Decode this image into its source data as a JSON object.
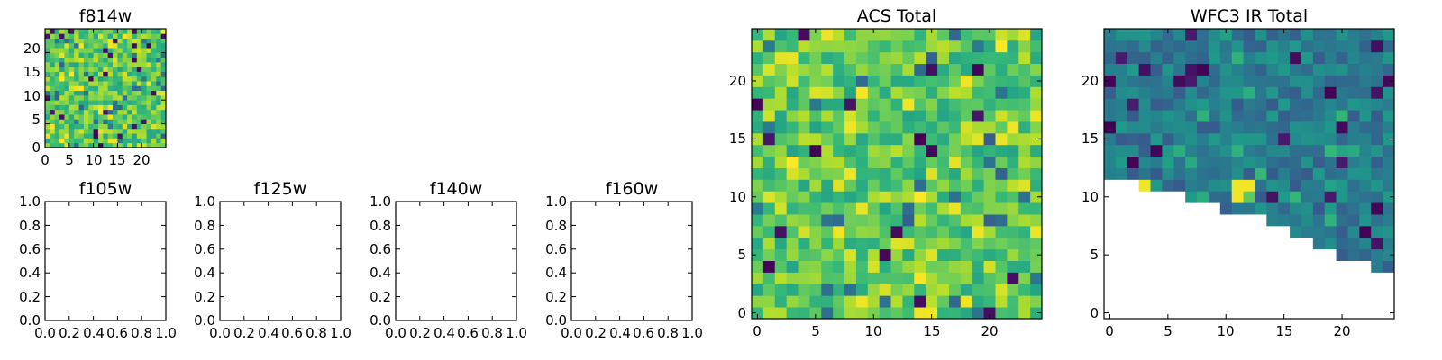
{
  "chart_data": [
    {
      "id": "f814w",
      "type": "heatmap",
      "title": "f814w",
      "xlim": [
        0,
        25
      ],
      "ylim": [
        0,
        25
      ],
      "xticks": [
        0,
        5,
        10,
        15,
        20
      ],
      "yticks": [
        0,
        5,
        10,
        15,
        20
      ],
      "tick_labels_x": [
        "0",
        "5",
        "10",
        "15",
        "20"
      ],
      "tick_labels_y": [
        "0",
        "5",
        "10",
        "15",
        "20"
      ],
      "grid_size": 25,
      "colormap": "viridis",
      "value_range": [
        0,
        1
      ],
      "pattern": "acs"
    },
    {
      "id": "f105w",
      "type": "empty",
      "title": "f105w",
      "xlim": [
        0,
        1
      ],
      "ylim": [
        0,
        1
      ],
      "xticks": [
        0,
        0.2,
        0.4,
        0.6,
        0.8,
        1.0
      ],
      "yticks": [
        0,
        0.2,
        0.4,
        0.6,
        0.8,
        1.0
      ],
      "tick_labels_x": [
        "0.0",
        "0.2",
        "0.4",
        "0.6",
        "0.8",
        "1.0"
      ],
      "tick_labels_y": [
        "0.0",
        "0.2",
        "0.4",
        "0.6",
        "0.8",
        "1.0"
      ]
    },
    {
      "id": "f125w",
      "type": "empty",
      "title": "f125w",
      "xlim": [
        0,
        1
      ],
      "ylim": [
        0,
        1
      ],
      "xticks": [
        0,
        0.2,
        0.4,
        0.6,
        0.8,
        1.0
      ],
      "yticks": [
        0,
        0.2,
        0.4,
        0.6,
        0.8,
        1.0
      ],
      "tick_labels_x": [
        "0.0",
        "0.2",
        "0.4",
        "0.6",
        "0.8",
        "1.0"
      ],
      "tick_labels_y": [
        "0.0",
        "0.2",
        "0.4",
        "0.6",
        "0.8",
        "1.0"
      ]
    },
    {
      "id": "f140w",
      "type": "empty",
      "title": "f140w",
      "xlim": [
        0,
        1
      ],
      "ylim": [
        0,
        1
      ],
      "xticks": [
        0,
        0.2,
        0.4,
        0.6,
        0.8,
        1.0
      ],
      "yticks": [
        0,
        0.2,
        0.4,
        0.6,
        0.8,
        1.0
      ],
      "tick_labels_x": [
        "0.0",
        "0.2",
        "0.4",
        "0.6",
        "0.8",
        "1.0"
      ],
      "tick_labels_y": [
        "0.0",
        "0.2",
        "0.4",
        "0.6",
        "0.8",
        "1.0"
      ]
    },
    {
      "id": "f160w",
      "type": "empty",
      "title": "f160w",
      "xlim": [
        0,
        1
      ],
      "ylim": [
        0,
        1
      ],
      "xticks": [
        0,
        0.2,
        0.4,
        0.6,
        0.8,
        1.0
      ],
      "yticks": [
        0,
        0.2,
        0.4,
        0.6,
        0.8,
        1.0
      ],
      "tick_labels_x": [
        "0.0",
        "0.2",
        "0.4",
        "0.6",
        "0.8",
        "1.0"
      ],
      "tick_labels_y": [
        "0.0",
        "0.2",
        "0.4",
        "0.6",
        "0.8",
        "1.0"
      ]
    },
    {
      "id": "acs-total",
      "type": "heatmap",
      "title": "ACS Total",
      "xlim": [
        -0.5,
        24.5
      ],
      "ylim": [
        -0.5,
        24.5
      ],
      "xticks": [
        0,
        5,
        10,
        15,
        20
      ],
      "yticks": [
        0,
        5,
        10,
        15,
        20
      ],
      "tick_labels_x": [
        "0",
        "5",
        "10",
        "15",
        "20"
      ],
      "tick_labels_y": [
        "0",
        "5",
        "10",
        "15",
        "20"
      ],
      "grid_size": 25,
      "colormap": "viridis",
      "value_range": [
        0,
        1
      ],
      "pattern": "acs"
    },
    {
      "id": "wfc3-ir-total",
      "type": "heatmap",
      "title": "WFC3 IR Total",
      "xlim": [
        -0.5,
        24.5
      ],
      "ylim": [
        -0.5,
        24.5
      ],
      "xticks": [
        0,
        5,
        10,
        15,
        20
      ],
      "yticks": [
        0,
        5,
        10,
        15,
        20
      ],
      "tick_labels_x": [
        "0",
        "5",
        "10",
        "15",
        "20"
      ],
      "tick_labels_y": [
        "0",
        "5",
        "10",
        "15",
        "20"
      ],
      "grid_size": 25,
      "colormap": "viridis",
      "value_range": [
        0,
        1
      ],
      "pattern": "wfc3",
      "masked_region": "lower-left wedge (no coverage)",
      "row_min_column": {
        "4": 23,
        "5": 20,
        "6": 18,
        "7": 16,
        "8": 14,
        "9": 10,
        "10": 7,
        "11": 3,
        "12": 0
      }
    }
  ]
}
